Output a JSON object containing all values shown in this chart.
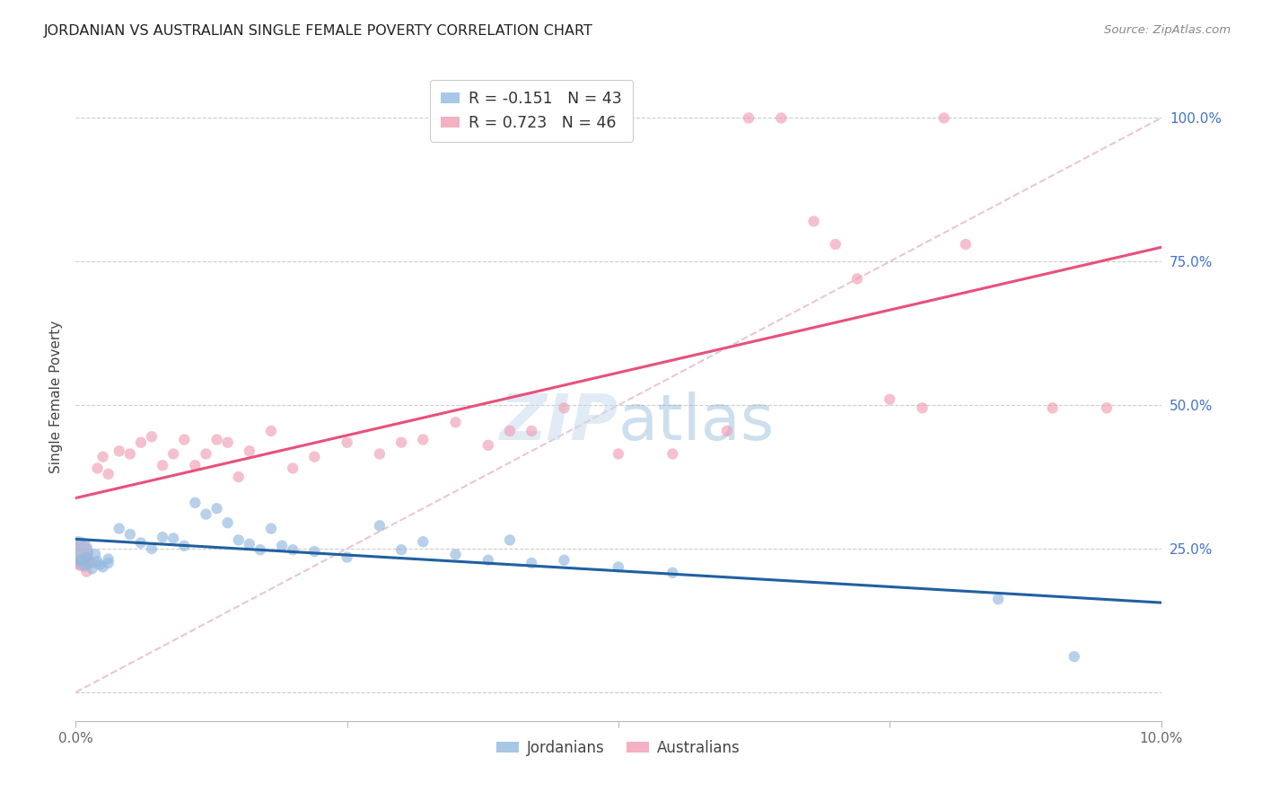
{
  "title": "JORDANIAN VS AUSTRALIAN SINGLE FEMALE POVERTY CORRELATION CHART",
  "source": "Source: ZipAtlas.com",
  "ylabel": "Single Female Poverty",
  "legend_jordanians": "Jordanians",
  "legend_australians": "Australians",
  "jordan_R": "R = -0.151",
  "jordan_N": "N = 43",
  "australia_R": "R = 0.723",
  "australia_N": "N = 46",
  "jordan_color": "#92B8E0",
  "australia_color": "#F09EB5",
  "jordan_line_color": "#2060A0",
  "australia_line_color": "#E8507A",
  "diagonal_color": "#E8C8D0",
  "background_color": "#FFFFFF",
  "jordan_scatter_x": [
    0.0002,
    0.0005,
    0.0008,
    0.001,
    0.0012,
    0.0015,
    0.0018,
    0.002,
    0.0022,
    0.0025,
    0.003,
    0.003,
    0.004,
    0.005,
    0.006,
    0.007,
    0.008,
    0.009,
    0.01,
    0.011,
    0.012,
    0.013,
    0.014,
    0.015,
    0.016,
    0.017,
    0.018,
    0.019,
    0.02,
    0.022,
    0.025,
    0.028,
    0.03,
    0.032,
    0.035,
    0.038,
    0.04,
    0.042,
    0.045,
    0.05,
    0.055,
    0.085,
    0.092
  ],
  "jordan_scatter_y": [
    0.245,
    0.23,
    0.22,
    0.235,
    0.225,
    0.215,
    0.24,
    0.228,
    0.222,
    0.218,
    0.225,
    0.232,
    0.285,
    0.275,
    0.26,
    0.25,
    0.27,
    0.268,
    0.255,
    0.33,
    0.31,
    0.32,
    0.295,
    0.265,
    0.258,
    0.248,
    0.285,
    0.255,
    0.248,
    0.245,
    0.235,
    0.29,
    0.248,
    0.262,
    0.24,
    0.23,
    0.265,
    0.225,
    0.23,
    0.218,
    0.208,
    0.162,
    0.062
  ],
  "jordan_scatter_size": [
    600,
    80,
    80,
    80,
    80,
    80,
    80,
    80,
    80,
    80,
    80,
    80,
    80,
    80,
    80,
    80,
    80,
    80,
    80,
    80,
    80,
    80,
    80,
    80,
    80,
    80,
    80,
    80,
    80,
    80,
    80,
    80,
    80,
    80,
    80,
    80,
    80,
    80,
    80,
    80,
    80,
    80,
    80
  ],
  "australia_scatter_x": [
    0.0002,
    0.0005,
    0.001,
    0.0015,
    0.002,
    0.0025,
    0.003,
    0.004,
    0.005,
    0.006,
    0.007,
    0.008,
    0.009,
    0.01,
    0.011,
    0.012,
    0.013,
    0.014,
    0.015,
    0.016,
    0.018,
    0.02,
    0.022,
    0.025,
    0.028,
    0.03,
    0.032,
    0.035,
    0.038,
    0.04,
    0.042,
    0.045,
    0.05,
    0.055,
    0.06,
    0.062,
    0.065,
    0.068,
    0.07,
    0.072,
    0.075,
    0.078,
    0.08,
    0.082,
    0.09,
    0.095
  ],
  "australia_scatter_y": [
    0.24,
    0.22,
    0.21,
    0.225,
    0.39,
    0.41,
    0.38,
    0.42,
    0.415,
    0.435,
    0.445,
    0.395,
    0.415,
    0.44,
    0.395,
    0.415,
    0.44,
    0.435,
    0.375,
    0.42,
    0.455,
    0.39,
    0.41,
    0.435,
    0.415,
    0.435,
    0.44,
    0.47,
    0.43,
    0.455,
    0.455,
    0.495,
    0.415,
    0.415,
    0.455,
    1.0,
    1.0,
    0.82,
    0.78,
    0.72,
    0.51,
    0.495,
    1.0,
    0.78,
    0.495,
    0.495
  ],
  "australia_scatter_size": [
    600,
    80,
    80,
    80,
    80,
    80,
    80,
    80,
    80,
    80,
    80,
    80,
    80,
    80,
    80,
    80,
    80,
    80,
    80,
    80,
    80,
    80,
    80,
    80,
    80,
    80,
    80,
    80,
    80,
    80,
    80,
    80,
    80,
    80,
    80,
    80,
    80,
    80,
    80,
    80,
    80,
    80,
    80,
    80,
    80,
    80
  ],
  "xlim": [
    0.0,
    0.1
  ],
  "ylim": [
    -0.05,
    1.08
  ],
  "x_ticks": [
    0.0,
    0.025,
    0.05,
    0.075,
    0.1
  ],
  "x_tick_labels": [
    "0.0%",
    "",
    "",
    "",
    "10.0%"
  ],
  "y_ticks": [
    0.0,
    0.25,
    0.5,
    0.75,
    1.0
  ],
  "y_tick_labels": [
    "",
    "25.0%",
    "50.0%",
    "75.0%",
    "100.0%"
  ]
}
